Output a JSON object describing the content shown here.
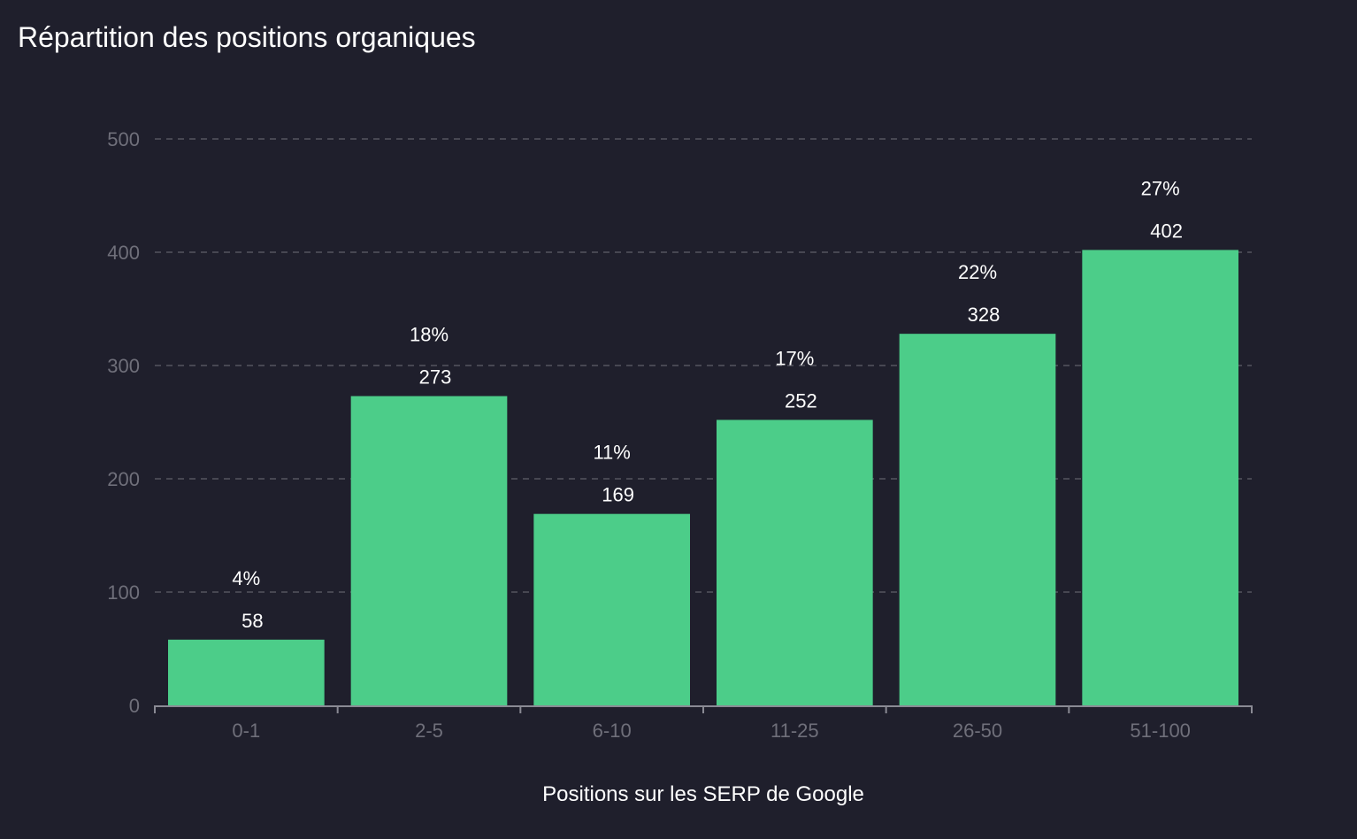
{
  "chart_data": {
    "type": "bar",
    "title": "Répartition des positions organiques",
    "xlabel": "Positions sur les SERP de Google",
    "ylabel": "",
    "categories": [
      "0-1",
      "2-5",
      "6-10",
      "11-25",
      "26-50",
      "51-100"
    ],
    "values": [
      58,
      273,
      169,
      252,
      328,
      402
    ],
    "percent_labels": [
      "4%",
      "18%",
      "11%",
      "17%",
      "22%",
      "27%"
    ],
    "ylim": [
      0,
      500
    ],
    "yticks": [
      0,
      100,
      200,
      300,
      400,
      500
    ],
    "grid": true,
    "legend": "none",
    "colors": {
      "bar": "#4ccd89",
      "background": "#1f1f2c",
      "grid": "#55555f",
      "axis": "#8a8a94"
    }
  }
}
